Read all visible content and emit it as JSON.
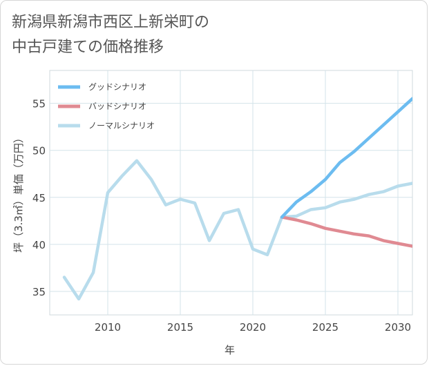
{
  "title_line1": "新潟県新潟市西区上新栄町の",
  "title_line2": "中古戸建ての価格推移",
  "chart_data": {
    "type": "line",
    "xlabel": "年",
    "ylabel": "坪（3.3㎡）単価（万円）",
    "xlim": [
      2006,
      2031
    ],
    "ylim": [
      32.5,
      58.5
    ],
    "x_ticks": [
      2010,
      2015,
      2020,
      2025,
      2030
    ],
    "y_ticks": [
      35,
      40,
      45,
      50,
      55
    ],
    "grid": true,
    "legend_position": "top-left",
    "series": [
      {
        "name": "グッドシナリオ",
        "color": "#6cbcf0",
        "x": [
          2022,
          2023,
          2024,
          2025,
          2026,
          2027,
          2028,
          2029,
          2030,
          2031
        ],
        "values": [
          42.9,
          44.5,
          45.6,
          46.9,
          48.7,
          49.9,
          51.3,
          52.7,
          54.1,
          55.5
        ]
      },
      {
        "name": "バッドシナリオ",
        "color": "#e08a92",
        "x": [
          2022,
          2023,
          2024,
          2025,
          2026,
          2027,
          2028,
          2029,
          2030,
          2031
        ],
        "values": [
          42.9,
          42.6,
          42.2,
          41.7,
          41.4,
          41.1,
          40.9,
          40.4,
          40.1,
          39.8
        ]
      },
      {
        "name": "ノーマルシナリオ",
        "color": "#b8dcec",
        "x": [
          2007,
          2008,
          2009,
          2010,
          2011,
          2012,
          2013,
          2014,
          2015,
          2016,
          2017,
          2018,
          2019,
          2020,
          2021,
          2022,
          2023,
          2024,
          2025,
          2026,
          2027,
          2028,
          2029,
          2030,
          2031
        ],
        "values": [
          36.5,
          34.2,
          37.0,
          45.5,
          47.3,
          48.9,
          46.9,
          44.2,
          44.8,
          44.4,
          40.4,
          43.3,
          43.7,
          39.5,
          38.9,
          42.9,
          43.0,
          43.7,
          43.9,
          44.5,
          44.8,
          45.3,
          45.6,
          46.2,
          46.5
        ]
      }
    ]
  }
}
